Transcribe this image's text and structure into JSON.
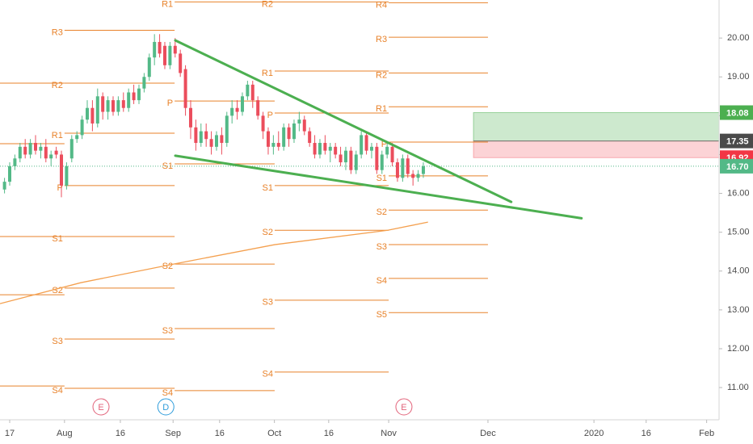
{
  "chart_data": {
    "type": "candlestick",
    "up_color": "#53b987",
    "down_color": "#eb4d5c",
    "xlim": [
      -0.875,
      138.2
    ],
    "ylim": [
      10.17,
      20.98
    ],
    "xticks": [
      {
        "value": 1.0,
        "label": "17"
      },
      {
        "value": 11.6,
        "label": "Aug"
      },
      {
        "value": 22.4,
        "label": "16"
      },
      {
        "value": 32.6,
        "label": "Sep"
      },
      {
        "value": 41.6,
        "label": "16"
      },
      {
        "value": 52.2,
        "label": "Oct"
      },
      {
        "value": 62.7,
        "label": "16"
      },
      {
        "value": 74.3,
        "label": "Nov"
      },
      {
        "value": 93.5,
        "label": "Dec"
      },
      {
        "value": 114,
        "label": "2020"
      },
      {
        "value": 124.1,
        "label": "16"
      },
      {
        "value": 135.8,
        "label": "Feb"
      }
    ],
    "yticks": [
      {
        "value": 11,
        "label": "11.00"
      },
      {
        "value": 12,
        "label": "12.00"
      },
      {
        "value": 13,
        "label": "13.00"
      },
      {
        "value": 14,
        "label": "14.00"
      },
      {
        "value": 15,
        "label": "15.00"
      },
      {
        "value": 16,
        "label": "16.00"
      },
      {
        "value": 17,
        "label": "17.00"
      },
      {
        "value": 18,
        "label": "18.00"
      },
      {
        "value": 19,
        "label": "19.00"
      },
      {
        "value": 20,
        "label": "20.00"
      }
    ],
    "candles": [
      [
        16.1,
        16.4,
        16.0,
        16.3
      ],
      [
        16.3,
        16.8,
        16.2,
        16.7
      ],
      [
        16.7,
        17.0,
        16.6,
        16.9
      ],
      [
        16.9,
        17.3,
        16.8,
        17.2
      ],
      [
        17.2,
        17.4,
        16.9,
        17.0
      ],
      [
        17.0,
        17.4,
        16.9,
        17.3
      ],
      [
        17.3,
        17.5,
        17.0,
        17.1
      ],
      [
        17.1,
        17.3,
        16.9,
        17.2
      ],
      [
        17.2,
        17.4,
        16.8,
        16.9
      ],
      [
        16.9,
        17.1,
        16.7,
        17.0
      ],
      [
        17.1,
        17.2,
        16.9,
        17.0
      ],
      [
        17.0,
        17.1,
        15.9,
        16.2
      ],
      [
        16.2,
        16.8,
        16.1,
        16.7
      ],
      [
        16.9,
        17.5,
        16.8,
        17.4
      ],
      [
        17.4,
        17.6,
        17.3,
        17.5
      ],
      [
        17.5,
        18.0,
        17.4,
        17.9
      ],
      [
        17.9,
        18.4,
        17.8,
        18.2
      ],
      [
        18.2,
        18.4,
        17.6,
        17.8
      ],
      [
        17.8,
        18.7,
        17.7,
        18.5
      ],
      [
        18.5,
        18.6,
        17.9,
        18.1
      ],
      [
        18.1,
        18.5,
        17.9,
        18.4
      ],
      [
        18.4,
        18.5,
        18.0,
        18.1
      ],
      [
        18.1,
        18.5,
        18.0,
        18.4
      ],
      [
        18.4,
        18.6,
        18.1,
        18.2
      ],
      [
        18.2,
        18.7,
        18.1,
        18.6
      ],
      [
        18.6,
        18.8,
        18.3,
        18.4
      ],
      [
        18.4,
        18.8,
        18.3,
        18.7
      ],
      [
        18.7,
        19.1,
        18.6,
        19.0
      ],
      [
        19.0,
        19.6,
        18.9,
        19.5
      ],
      [
        19.5,
        20.1,
        19.3,
        19.9
      ],
      [
        19.9,
        20.1,
        19.5,
        19.6
      ],
      [
        19.8,
        19.9,
        19.2,
        19.3
      ],
      [
        19.3,
        19.9,
        19.2,
        19.8
      ],
      [
        19.8,
        20.0,
        19.5,
        19.6
      ],
      [
        19.6,
        19.7,
        19.0,
        19.1
      ],
      [
        19.2,
        19.3,
        18.0,
        18.2
      ],
      [
        18.2,
        18.4,
        17.4,
        17.7
      ],
      [
        17.7,
        17.9,
        17.1,
        17.3
      ],
      [
        17.3,
        17.8,
        17.2,
        17.6
      ],
      [
        17.6,
        17.8,
        17.2,
        17.4
      ],
      [
        17.4,
        17.6,
        17.0,
        17.2
      ],
      [
        17.2,
        17.6,
        17.1,
        17.5
      ],
      [
        17.5,
        17.7,
        17.0,
        17.3
      ],
      [
        17.3,
        18.1,
        17.2,
        18.0
      ],
      [
        18.0,
        18.4,
        17.8,
        18.2
      ],
      [
        18.2,
        18.4,
        17.9,
        18.1
      ],
      [
        18.1,
        18.6,
        18.0,
        18.5
      ],
      [
        18.5,
        18.9,
        18.4,
        18.8
      ],
      [
        18.8,
        18.9,
        18.2,
        18.4
      ],
      [
        18.4,
        18.5,
        17.9,
        18.0
      ],
      [
        18.0,
        18.1,
        17.4,
        17.6
      ],
      [
        17.6,
        17.7,
        17.0,
        17.2
      ],
      [
        17.2,
        17.5,
        17.0,
        17.3
      ],
      [
        17.3,
        17.6,
        17.1,
        17.2
      ],
      [
        17.2,
        17.8,
        17.1,
        17.7
      ],
      [
        17.7,
        17.8,
        17.2,
        17.4
      ],
      [
        17.4,
        17.9,
        17.3,
        17.8
      ],
      [
        17.8,
        18.1,
        17.6,
        17.9
      ],
      [
        17.9,
        18.0,
        17.5,
        17.6
      ],
      [
        17.6,
        17.7,
        17.2,
        17.3
      ],
      [
        17.3,
        17.5,
        16.9,
        17.0
      ],
      [
        17.0,
        17.4,
        16.9,
        17.3
      ],
      [
        17.3,
        17.5,
        17.0,
        17.1
      ],
      [
        17.1,
        17.3,
        16.8,
        17.2
      ],
      [
        17.2,
        17.3,
        16.9,
        17.0
      ],
      [
        17.0,
        17.2,
        16.7,
        16.8
      ],
      [
        16.8,
        17.2,
        16.6,
        17.1
      ],
      [
        17.1,
        17.2,
        16.5,
        16.6
      ],
      [
        16.6,
        17.1,
        16.5,
        17.0
      ],
      [
        17.0,
        17.6,
        16.9,
        17.5
      ],
      [
        17.5,
        17.6,
        17.0,
        17.1
      ],
      [
        17.1,
        17.3,
        16.9,
        17.2
      ],
      [
        17.2,
        17.3,
        16.5,
        16.6
      ],
      [
        16.6,
        17.1,
        16.5,
        17.0
      ],
      [
        17.0,
        17.3,
        16.9,
        17.2
      ],
      [
        17.2,
        17.3,
        16.7,
        16.8
      ],
      [
        16.8,
        16.9,
        16.3,
        16.4
      ],
      [
        16.4,
        17.0,
        16.3,
        16.9
      ],
      [
        16.9,
        17.0,
        16.4,
        16.5
      ],
      [
        16.5,
        16.6,
        16.2,
        16.4
      ],
      [
        16.4,
        16.6,
        16.3,
        16.5
      ],
      [
        16.5,
        16.8,
        16.4,
        16.7
      ]
    ],
    "pivot_color": "#e8822a",
    "pivots": [
      {
        "x": [
          -0.875,
          11.6
        ],
        "levels": [
          18.84,
          17.28,
          14.89,
          13.39,
          11.04
        ],
        "labels": [
          null,
          null,
          null,
          null,
          null
        ]
      },
      {
        "x": [
          11.6,
          32.9
        ],
        "levels": [
          20.2,
          18.84,
          17.55,
          16.2,
          14.89,
          13.56,
          12.25,
          10.98
        ],
        "labels": [
          "R3",
          "R2",
          "R1",
          "P",
          "S1",
          "S2",
          "S3",
          "S4"
        ]
      },
      {
        "x": [
          32.9,
          52.25
        ],
        "levels": [
          20.93,
          18.38,
          16.76,
          14.18,
          12.52,
          10.92
        ],
        "labels": [
          "R1",
          "P",
          "S1",
          "S2",
          "S3",
          "S4"
        ]
      },
      {
        "x": [
          52.25,
          74.3
        ],
        "levels": [
          20.93,
          19.15,
          18.07,
          16.2,
          15.05,
          13.25,
          11.4
        ],
        "labels": [
          "R2",
          "R1",
          "P",
          "S1",
          "S2",
          "S3",
          "S4"
        ]
      },
      {
        "x": [
          74.3,
          93.5
        ],
        "levels": [
          20.91,
          20.02,
          19.1,
          18.23,
          17.32,
          16.45,
          15.57,
          14.68,
          13.81,
          12.93
        ],
        "labels": [
          "R4",
          "R3",
          "R2",
          "R1",
          "P",
          "S1",
          "S2",
          "S3",
          "S4",
          "S5"
        ]
      }
    ],
    "moving_average": {
      "color": "#f4a04f",
      "x": [
        -0.875,
        14.75,
        32.7,
        52.25,
        74.1,
        81.9
      ],
      "values": [
        13.16,
        13.7,
        14.18,
        14.68,
        15.05,
        15.26
      ]
    },
    "trendline_color": "#4caf50",
    "trendlines": [
      {
        "x": [
          33.03,
          98.0
        ],
        "values": [
          19.94,
          15.78
        ]
      },
      {
        "x": [
          33.03,
          111.6
        ],
        "values": [
          16.97,
          15.36
        ]
      }
    ],
    "position_start": 90.7,
    "price_tags": [
      {
        "value": 18.08,
        "label": "18.08",
        "color": "#4caf50"
      },
      {
        "value": 17.35,
        "label": "17.35",
        "color": "#4a4a4a"
      },
      {
        "value": 16.92,
        "label": "16.92",
        "color": "#f23645"
      },
      {
        "value": 16.7,
        "label": "16.70",
        "color": "#53b987"
      }
    ],
    "events": [
      {
        "label": "E",
        "x": 18.66,
        "color": "#e2637a"
      },
      {
        "label": "D",
        "x": 31.2,
        "color": "#2d9cdb"
      },
      {
        "label": "E",
        "x": 77.25,
        "color": "#e2637a"
      }
    ]
  }
}
